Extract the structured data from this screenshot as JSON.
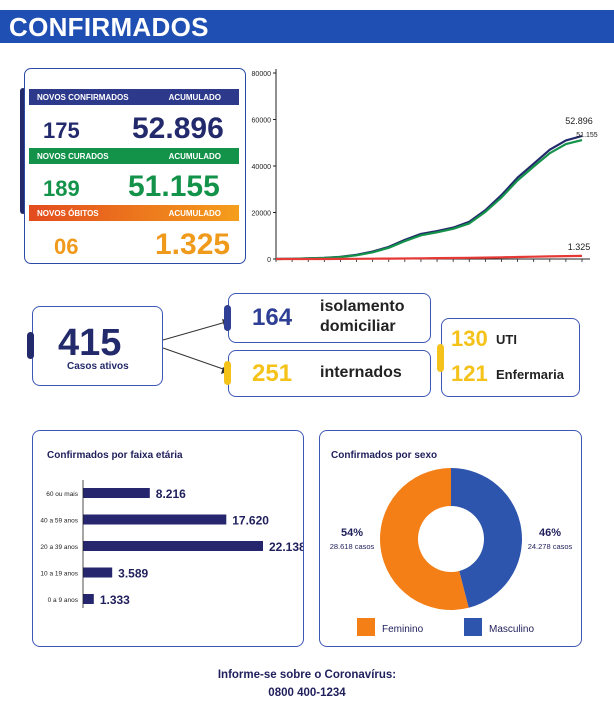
{
  "header": {
    "title": "CONFIRMADOS"
  },
  "stats": {
    "confirmados": {
      "label": "NOVOS CONFIRMADOS",
      "acc_label": "ACUMULADO",
      "new": "175",
      "total": "52.896",
      "color": "#232a6b"
    },
    "curados": {
      "label": "NOVOS CURADOS",
      "acc_label": "ACUMULADO",
      "new": "189",
      "total": "51.155",
      "color": "#13924a"
    },
    "obitos": {
      "label": "NOVOS ÓBITOS",
      "acc_label": "ACUMULADO",
      "new": "06",
      "total": "1.325",
      "color": "#f09a1c"
    }
  },
  "active": {
    "total": "415",
    "total_label": "Casos ativos",
    "isolamento": {
      "value": "164",
      "label_line1": "isolamento",
      "label_line2": "domiciliar"
    },
    "internados": {
      "value": "251",
      "label": "internados"
    },
    "uti": {
      "value": "130",
      "label": "UTI"
    },
    "enfermaria": {
      "value": "121",
      "label": "Enfermaria"
    }
  },
  "chart_data": [
    {
      "type": "line",
      "ylim": [
        0,
        80000
      ],
      "yticks": [
        "0",
        "20000",
        "40000",
        "60000",
        "80000"
      ],
      "series": [
        {
          "color": "#232a6b",
          "end_label": "52.896",
          "values": [
            0,
            100,
            300,
            500,
            900,
            1800,
            3200,
            5200,
            8200,
            10800,
            12000,
            13500,
            16000,
            21000,
            27500,
            35000,
            41000,
            47000,
            51000,
            52896
          ]
        },
        {
          "color": "#13924a",
          "end_label": "51.155",
          "values": [
            0,
            80,
            250,
            450,
            800,
            1600,
            2900,
            4800,
            7700,
            10200,
            11500,
            13000,
            15300,
            20300,
            26500,
            33800,
            39800,
            45500,
            49400,
            51155
          ]
        },
        {
          "color": "#e53935",
          "end_label": "1.325",
          "values": [
            0,
            5,
            10,
            20,
            40,
            70,
            110,
            160,
            230,
            300,
            370,
            430,
            500,
            600,
            720,
            850,
            980,
            1100,
            1230,
            1325
          ]
        }
      ]
    },
    {
      "type": "bar",
      "title": "Confirmados por faixa etária",
      "categories": [
        "60 ou mais",
        "40 a 59 anos",
        "20 a 39 anos",
        "10 a 19 anos",
        "0 a 9 anos"
      ],
      "values": [
        8216,
        17620,
        22138,
        3589,
        1333
      ],
      "value_labels": [
        "8.216",
        "17.620",
        "22.138",
        "3.589",
        "1.333"
      ],
      "color": "#26266e"
    },
    {
      "type": "pie",
      "title": "Confirmados por sexo",
      "slices": [
        {
          "name": "Feminino",
          "percent": 54,
          "percent_label": "54%",
          "cases_label": "28.618 casos",
          "color": "#f47f17"
        },
        {
          "name": "Masculino",
          "percent": 46,
          "percent_label": "46%",
          "cases_label": "24.278 casos",
          "color": "#2e55ad"
        }
      ]
    }
  ],
  "footer": {
    "line1": "Informe-se sobre o Coronavírus:",
    "line2": "0800 400-1234"
  }
}
